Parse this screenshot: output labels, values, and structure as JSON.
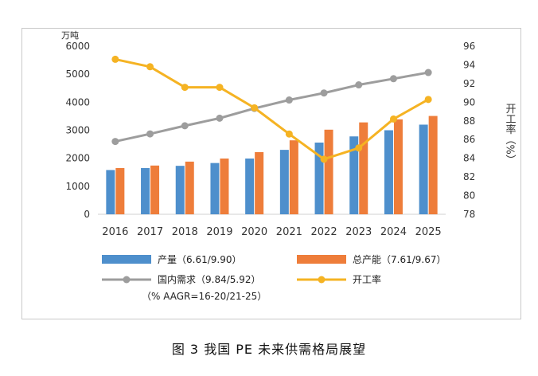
{
  "chart_data": {
    "type": "bar+line",
    "categories": [
      "2016",
      "2017",
      "2018",
      "2019",
      "2020",
      "2021",
      "2022",
      "2023",
      "2024",
      "2025"
    ],
    "left_axis": {
      "unit": "万吨",
      "ylim": [
        0,
        6000
      ],
      "ticks": [
        "0",
        "1000",
        "2000",
        "3000",
        "4000",
        "5000",
        "6000"
      ]
    },
    "right_axis": {
      "label": "开工率（%）",
      "ylim": [
        78,
        96
      ],
      "ticks": [
        "78",
        "80",
        "82",
        "84",
        "86",
        "88",
        "90",
        "92",
        "94",
        "96"
      ]
    },
    "series": [
      {
        "name": "产量（6.61/9.90）",
        "type": "bar",
        "axis": "left",
        "color": "#4e8fcc",
        "values": [
          1580,
          1650,
          1730,
          1830,
          1990,
          2300,
          2560,
          2780,
          3000,
          3200
        ]
      },
      {
        "name": "总产能（7.61/9.67）",
        "type": "bar",
        "axis": "left",
        "color": "#ee7d3a",
        "values": [
          1650,
          1740,
          1880,
          1990,
          2220,
          2640,
          3020,
          3280,
          3390,
          3510
        ]
      },
      {
        "name": "国内需求（9.84/5.92）",
        "type": "line",
        "axis": "left",
        "color": "#9d9d9d",
        "values": [
          2600,
          2870,
          3160,
          3430,
          3780,
          4080,
          4330,
          4620,
          4840,
          5060
        ]
      },
      {
        "name": "开工率",
        "type": "line",
        "axis": "right",
        "color": "#f5b323",
        "values": [
          94.6,
          93.8,
          91.6,
          91.6,
          89.4,
          86.6,
          83.9,
          85.1,
          88.2,
          90.3
        ]
      }
    ],
    "legend_note": "（% AAGR=16-20/21-25）",
    "legend_position": "bottom",
    "grid": false
  },
  "caption": "图 3  我国 PE 未来供需格局展望"
}
